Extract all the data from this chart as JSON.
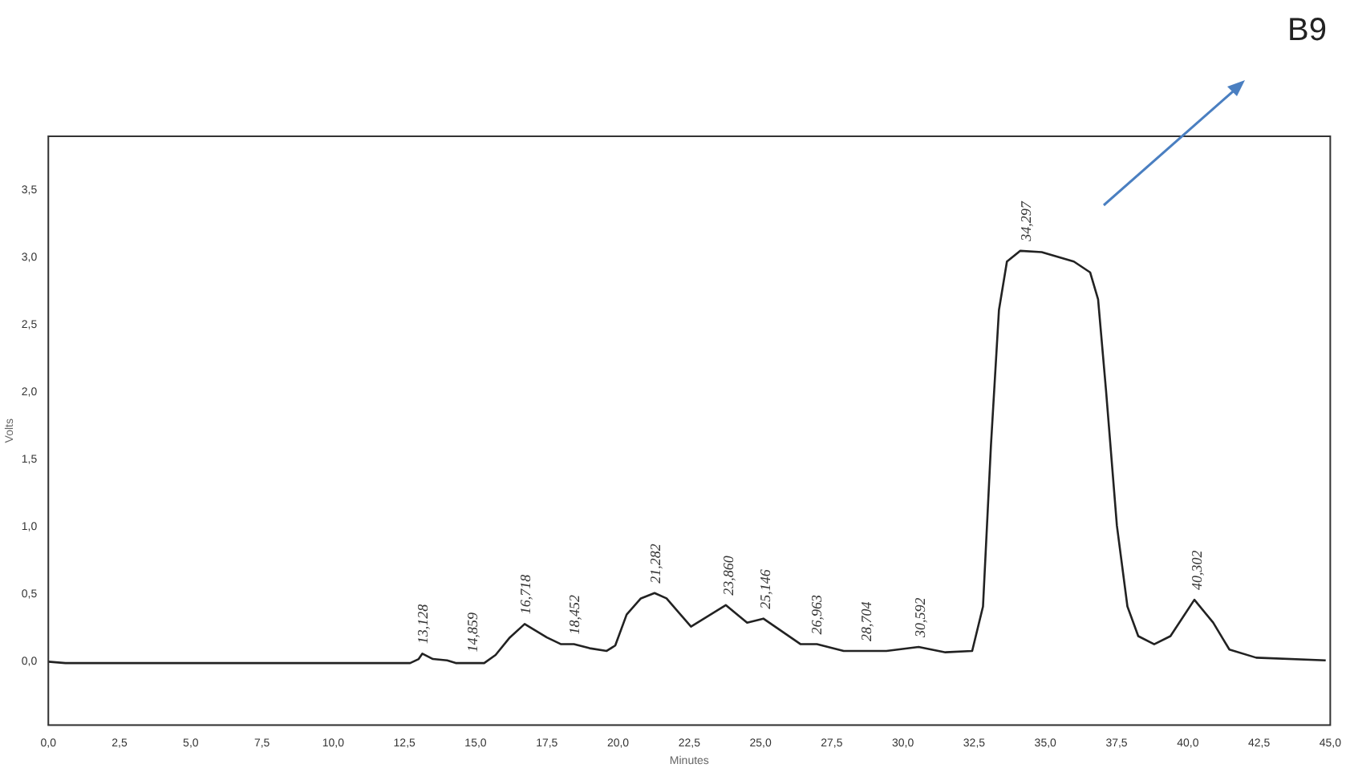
{
  "chart_data": {
    "type": "line",
    "xlabel": "Minutes",
    "ylabel": "Volts",
    "xlim": [
      0,
      45
    ],
    "xticks": [
      {
        "value": 0,
        "label": "0,0"
      },
      {
        "value": 2.5,
        "label": "2,5"
      },
      {
        "value": 5,
        "label": "5,0"
      },
      {
        "value": 7.5,
        "label": "7,5"
      },
      {
        "value": 10,
        "label": "10,0"
      },
      {
        "value": 12.5,
        "label": "12,5"
      },
      {
        "value": 15,
        "label": "15,0"
      },
      {
        "value": 17.5,
        "label": "17,5"
      },
      {
        "value": 20,
        "label": "20,0"
      },
      {
        "value": 22.5,
        "label": "22,5"
      },
      {
        "value": 25,
        "label": "25,0"
      },
      {
        "value": 27.5,
        "label": "27,5"
      },
      {
        "value": 30,
        "label": "30,0"
      },
      {
        "value": 32.5,
        "label": "32,5"
      },
      {
        "value": 35,
        "label": "35,0"
      },
      {
        "value": 37.5,
        "label": "37,5"
      },
      {
        "value": 40,
        "label": "40,0"
      },
      {
        "value": 42.5,
        "label": "42,5"
      },
      {
        "value": 45,
        "label": "45,0"
      }
    ],
    "ylim": [
      -0.47,
      3.9
    ],
    "yticks": [
      {
        "value": 0,
        "label": "0,0"
      },
      {
        "value": 0.5,
        "label": "0,5"
      },
      {
        "value": 1,
        "label": "1,0"
      },
      {
        "value": 1.5,
        "label": "1,5"
      },
      {
        "value": 2,
        "label": "2,0"
      },
      {
        "value": 2.5,
        "label": "2,5"
      },
      {
        "value": 3,
        "label": "3,0"
      },
      {
        "value": 3.5,
        "label": "3,5"
      }
    ],
    "grid": false,
    "legend": false,
    "marker": "none",
    "line_style": "solid",
    "series": [
      {
        "color": "#222222",
        "x": [
          0,
          0.6,
          12.7,
          13.0,
          13.13,
          13.5,
          14.0,
          14.3,
          15.3,
          15.7,
          16.2,
          16.72,
          17.5,
          18.0,
          18.45,
          19.0,
          19.6,
          19.9,
          20.3,
          20.8,
          21.28,
          21.7,
          22.56,
          23.78,
          24.53,
          25.1,
          26.41,
          26.98,
          27.92,
          29.42,
          30.55,
          31.49,
          32.43,
          32.81,
          33.09,
          33.37,
          33.65,
          34.12,
          34.87,
          36.0,
          36.57,
          36.85,
          37.13,
          37.51,
          37.88,
          38.26,
          38.82,
          39.39,
          40.23,
          40.89,
          41.46,
          42.4,
          44.84
        ],
        "values": [
          0,
          -0.01,
          -0.01,
          0.02,
          0.06,
          0.02,
          0.01,
          -0.01,
          -0.01,
          0.05,
          0.18,
          0.28,
          0.18,
          0.13,
          0.13,
          0.1,
          0.08,
          0.12,
          0.35,
          0.47,
          0.51,
          0.47,
          0.26,
          0.42,
          0.29,
          0.32,
          0.13,
          0.13,
          0.08,
          0.08,
          0.11,
          0.07,
          0.08,
          0.41,
          1.61,
          2.61,
          2.97,
          3.05,
          3.04,
          2.97,
          2.89,
          2.69,
          2.01,
          1.01,
          0.41,
          0.19,
          0.13,
          0.19,
          0.46,
          0.29,
          0.09,
          0.03,
          0.01
        ]
      }
    ],
    "annotations": [
      {
        "text": "13,128",
        "x": 13.13,
        "y": 0.06
      },
      {
        "text": "14,859",
        "x": 14.86,
        "y": 0.0
      },
      {
        "text": "16,718",
        "x": 16.72,
        "y": 0.28
      },
      {
        "text": "18,452",
        "x": 18.45,
        "y": 0.13
      },
      {
        "text": "21,282",
        "x": 21.28,
        "y": 0.51
      },
      {
        "text": "23,860",
        "x": 23.86,
        "y": 0.42
      },
      {
        "text": "25,146",
        "x": 25.15,
        "y": 0.32
      },
      {
        "text": "26,963",
        "x": 26.96,
        "y": 0.13
      },
      {
        "text": "28,704",
        "x": 28.7,
        "y": 0.08
      },
      {
        "text": "30,592",
        "x": 30.59,
        "y": 0.11
      },
      {
        "text": "34,297",
        "x": 34.3,
        "y": 3.05
      },
      {
        "text": "40,302",
        "x": 40.3,
        "y": 0.46
      },
      "B9"
    ]
  }
}
